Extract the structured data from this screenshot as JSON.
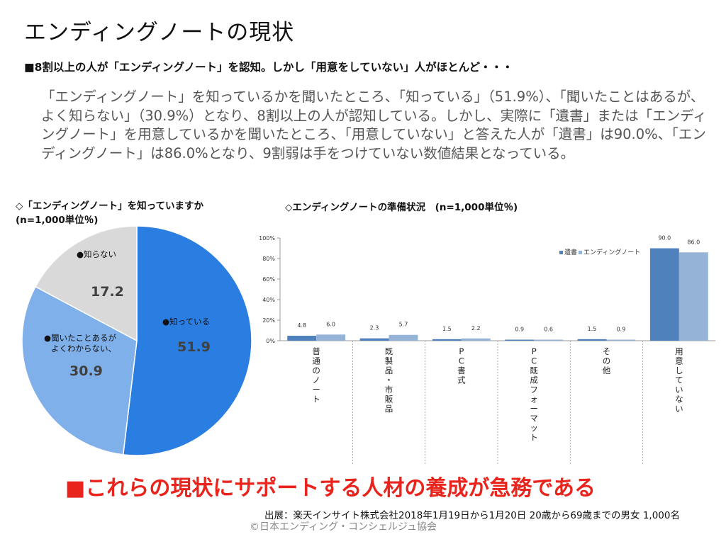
{
  "title": "エンディングノートの現状",
  "subtitle": "■8割以上の人が「エンディングノート」を認知。しかし「用意をしていない」人がほとんど・・・",
  "summary": "「エンディングノート」を知っているかを聞いたところ、「知っている」（51.9%）、「聞いたことはあるが、よく知らない」（30.9%）となり、8割以上の人が認知している。しかし、実際に「遺書」または「エンディングノート」を用意しているかを聞いたところ、「用意していない」と答えた人が「遺書」は90.0%、「エンディングノート」は86.0%となり、9割弱は手をつけていない数値結果となっている。",
  "pie_title_line1": "◇「エンディングノート」を知っていますか",
  "pie_title_line2": "(n=1,000単位％)",
  "bar_title": "◇エンディングノートの準備状況　(n=1,000単位％)",
  "conclusion": "■これらの現状にサポートする人材の養成が急務である",
  "source": "出展：楽天インサイト株式会社2018年1月19日から1月20日  20歳から69歳までの男女  1,000名",
  "copyright": "©日本エンディング・コンシェルジュ協会",
  "colors": {
    "pie_known": "#2a7de1",
    "pie_heard": "#80b0ea",
    "pie_unknown": "#d9d9d9",
    "bar_will": "#4f81bd",
    "bar_note": "#95b3d7",
    "conclusion": "#e8241c"
  },
  "chart_data": [
    {
      "type": "pie",
      "title": "",
      "slices": [
        {
          "label": "●知っている",
          "value": 51.9,
          "display": "51.9"
        },
        {
          "label": "●聞いたことあるが\nよくわからない、",
          "value": 30.9,
          "display": "30.9"
        },
        {
          "label": "●知らない",
          "value": 17.2,
          "display": "17.2"
        }
      ]
    },
    {
      "type": "bar",
      "title": "",
      "categories": [
        "普通のノート",
        "既製品・市販品",
        "PC書式",
        "PC既成フォーマット",
        "その他",
        "用意していない"
      ],
      "series": [
        {
          "name": "遺書",
          "values": [
            4.8,
            2.3,
            1.5,
            0.9,
            1.5,
            90.0
          ],
          "labels": [
            "4.8",
            "2.3",
            "1.5",
            "0.9",
            "1.5",
            "90.0"
          ]
        },
        {
          "name": "エンディングノート",
          "values": [
            6.0,
            5.7,
            2.2,
            0.6,
            0.9,
            86.0
          ],
          "labels": [
            "6.0",
            "5.7",
            "2.2",
            "0.6",
            "0.9",
            "86.0"
          ]
        }
      ],
      "ylim": [
        0,
        100
      ],
      "yticks": [
        "0%",
        "20%",
        "40%",
        "60%",
        "80%",
        "100%"
      ],
      "legend": "top-right",
      "grid": false
    }
  ]
}
